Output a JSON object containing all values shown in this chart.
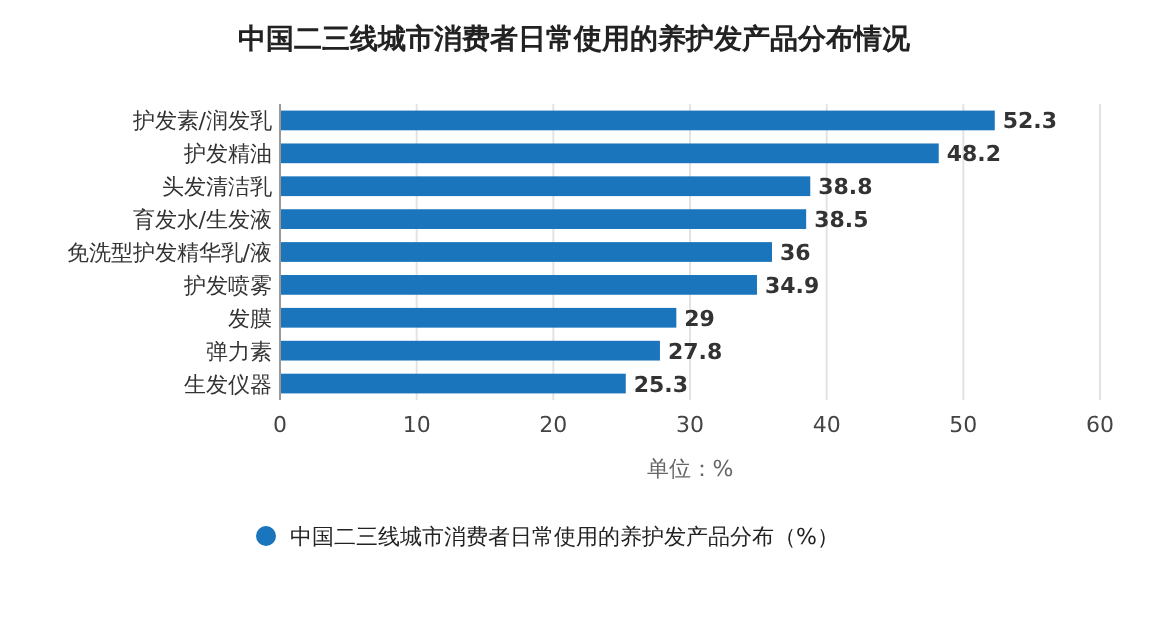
{
  "chart_data": {
    "type": "bar",
    "orientation": "horizontal",
    "title": "中国二三线城市消费者日常使用的养护发产品分布情况",
    "xlabel": "单位：%",
    "categories": [
      "护发素/润发乳",
      "护发精油",
      "头发清洁乳",
      "育发水/生发液",
      "免洗型护发精华乳/液",
      "护发喷雾",
      "发膜",
      "弹力素",
      "生发仪器"
    ],
    "series": [
      {
        "name": "中国二三线城市消费者日常使用的养护发产品分布（%）",
        "color": "#1a75bc",
        "values": [
          52.3,
          48.2,
          38.8,
          38.5,
          36,
          34.9,
          29,
          27.8,
          25.3
        ]
      }
    ],
    "xlim": [
      0,
      60
    ],
    "xticks": [
      0,
      10,
      20,
      30,
      40,
      50,
      60
    ],
    "grid": "x",
    "legend": "bottom",
    "data_labels": true
  }
}
